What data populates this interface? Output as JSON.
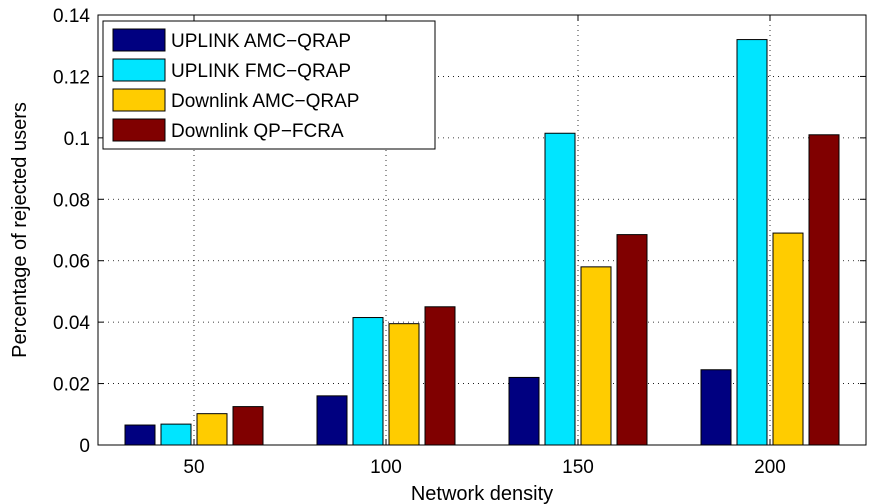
{
  "chart_data": {
    "type": "bar",
    "title": "",
    "xlabel": "Network density",
    "ylabel": "Percentage of rejected users",
    "categories": [
      "50",
      "100",
      "150",
      "200"
    ],
    "ylim": [
      0,
      0.14
    ],
    "yticks": [
      0,
      0.02,
      0.04,
      0.06,
      0.08,
      0.1,
      0.12,
      0.14
    ],
    "ytick_labels": [
      "0",
      "0.02",
      "0.04",
      "0.06",
      "0.08",
      "0.1",
      "0.12",
      "0.14"
    ],
    "grid": true,
    "legend_position": "top-left",
    "series": [
      {
        "name": "UPLINK AMC−QRAP",
        "color": "#000080",
        "values": [
          0.0065,
          0.016,
          0.022,
          0.0245
        ]
      },
      {
        "name": "UPLINK FMC−QRAP",
        "color": "#00e5ff",
        "values": [
          0.0068,
          0.0415,
          0.1015,
          0.132
        ]
      },
      {
        "name": "Downlink AMC−QRAP",
        "color": "#ffcc00",
        "values": [
          0.0102,
          0.0395,
          0.058,
          0.069
        ]
      },
      {
        "name": "Downlink QP−FCRA",
        "color": "#800000",
        "values": [
          0.0125,
          0.045,
          0.0685,
          0.101
        ]
      }
    ]
  }
}
